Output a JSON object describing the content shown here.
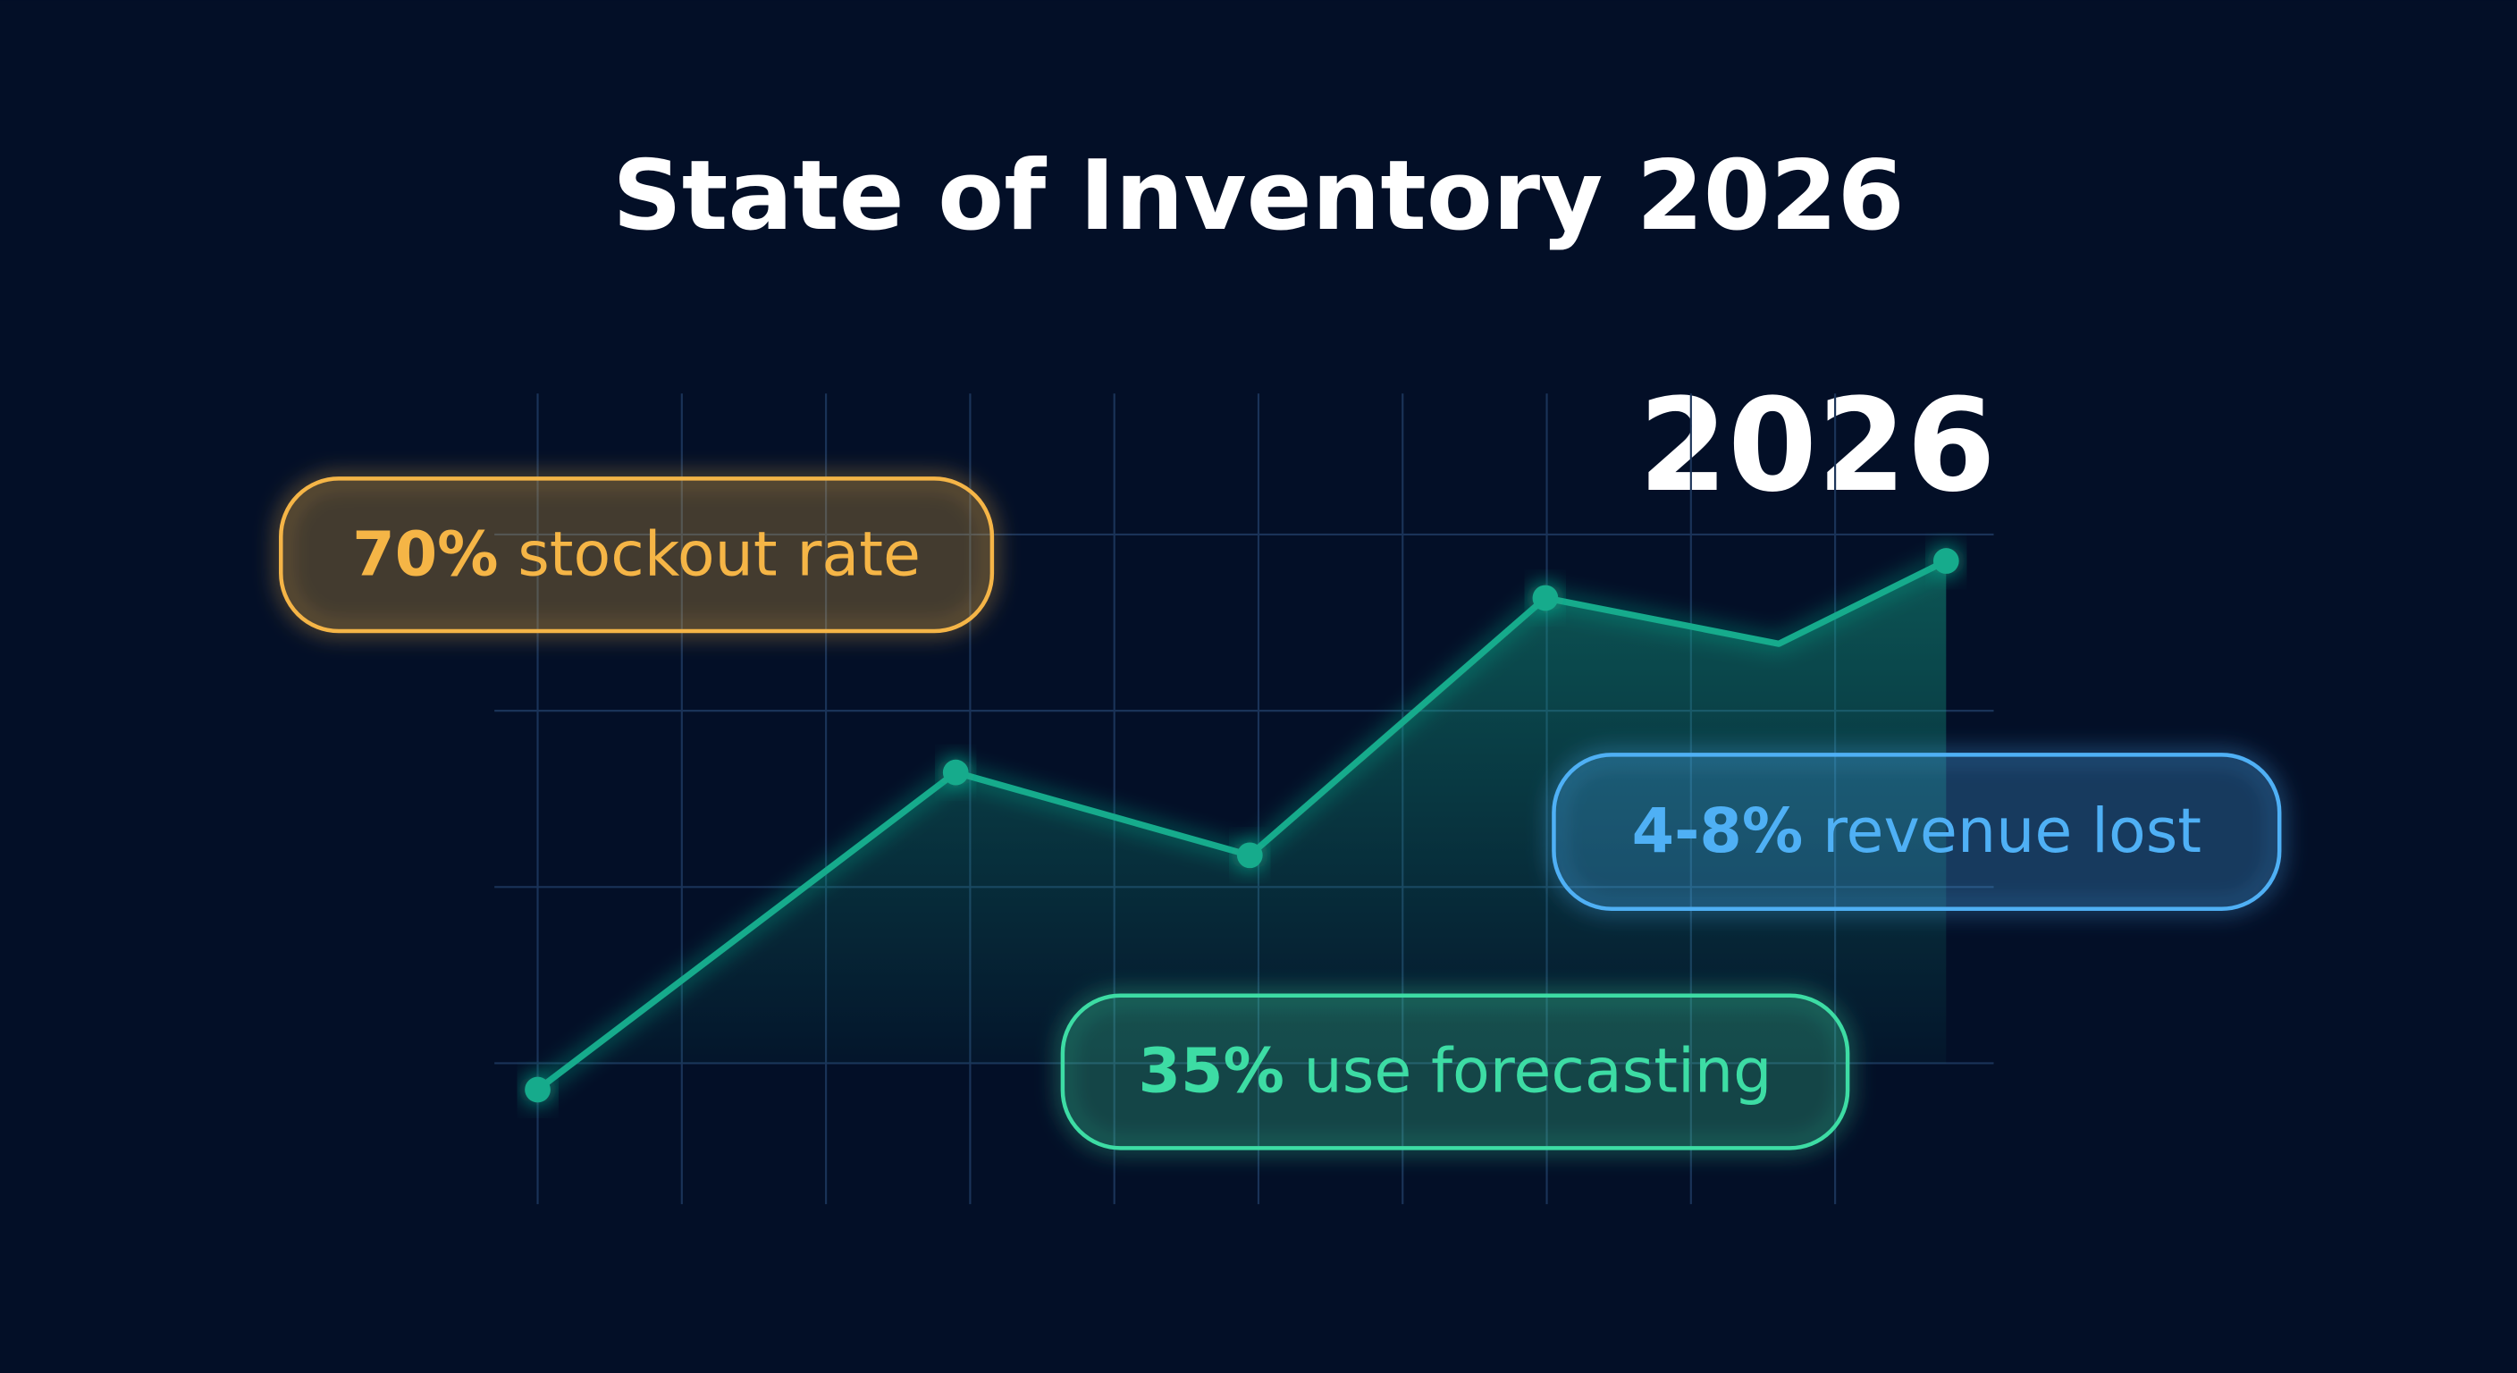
{
  "title": "State of Inventory 2026",
  "chart_data": {
    "type": "line",
    "highlight_label": "2026",
    "x": [
      0,
      2.9,
      4.94,
      6.99,
      8.61,
      9.77
    ],
    "values": [
      0.85,
      2.65,
      2.18,
      3.64,
      3.38,
      3.85
    ],
    "markers": [
      true,
      true,
      true,
      true,
      false,
      true
    ],
    "color": "#17ab8c",
    "xlim": [
      -0.3,
      10.1
    ],
    "ylim": [
      0.2,
      4.8
    ],
    "xticks": [
      0,
      1,
      2,
      3,
      4,
      5,
      6,
      7,
      8,
      9
    ],
    "yticks": [
      1,
      2,
      3,
      4
    ],
    "grid": true,
    "annotations": [
      {
        "emphasis": "70%",
        "text": "stockout rate",
        "color": "#f5b546"
      },
      {
        "emphasis": "4-8%",
        "text": "revenue lost",
        "color": "#4fb0f5"
      },
      {
        "emphasis": "35%",
        "text": "use forecasting",
        "color": "#3ddca4"
      }
    ]
  }
}
